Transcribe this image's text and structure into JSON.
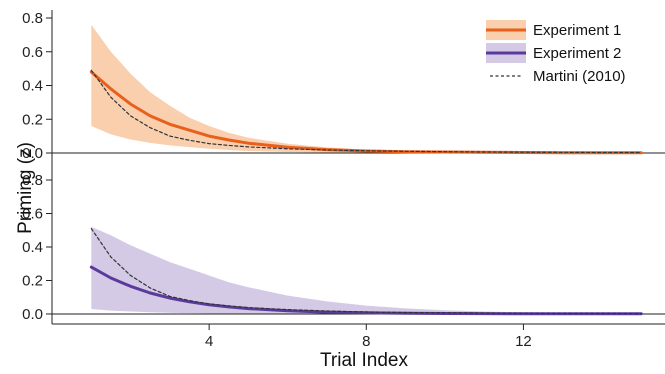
{
  "chart_data": {
    "type": "line",
    "title": "",
    "xlabel": "Trial Index",
    "ylabel": "Priming (z)",
    "xlim": [
      0,
      15.4
    ],
    "x_ticks": [
      "4",
      "8",
      "12"
    ],
    "x_tick_values": [
      4,
      8,
      12
    ],
    "grid": false,
    "legend": {
      "position": "top-right",
      "entries": [
        {
          "label": "Experiment 1",
          "kind": "line-with-band",
          "color": "#e8601c",
          "band_color": "#f9cfae"
        },
        {
          "label": "Experiment 2",
          "kind": "line-with-band",
          "color": "#5b3a9e",
          "band_color": "#d5cae6"
        },
        {
          "label": "Martini (2010)",
          "kind": "dashed-line",
          "color": "#333333"
        }
      ]
    },
    "panels": [
      {
        "name": "top",
        "ylim": [
          0,
          0.8
        ],
        "y_ticks": [
          "0.0",
          "0.2",
          "0.4",
          "0.6",
          "0.8"
        ],
        "y_tick_values": [
          0,
          0.2,
          0.4,
          0.6,
          0.8
        ],
        "series": [
          {
            "name": "Experiment 1",
            "x": [
              1,
              1.5,
              2,
              2.5,
              3,
              3.5,
              4,
              4.5,
              5,
              6,
              7,
              8,
              9,
              10,
              11,
              12,
              13,
              14,
              15
            ],
            "y": [
              0.48,
              0.38,
              0.29,
              0.22,
              0.17,
              0.135,
              0.1,
              0.077,
              0.058,
              0.034,
              0.02,
              0.012,
              0.008,
              0.006,
              0.004,
              0.003,
              0.002,
              0.002,
              0.002
            ],
            "y_upper": [
              0.76,
              0.6,
              0.47,
              0.36,
              0.28,
              0.21,
              0.16,
              0.12,
              0.09,
              0.055,
              0.033,
              0.02,
              0.012,
              0.008,
              0.006,
              0.005,
              0.004,
              0.003,
              0.003
            ],
            "y_lower": [
              0.16,
              0.11,
              0.08,
              0.06,
              0.045,
              0.035,
              0.025,
              0.018,
              0.012,
              0.006,
              0.003,
              0.001,
              0,
              0,
              0,
              0,
              0,
              0,
              0
            ]
          },
          {
            "name": "Martini (2010)",
            "x": [
              1,
              1.5,
              2,
              2.5,
              3,
              3.5,
              4,
              4.5,
              5,
              6,
              7,
              8,
              9,
              10,
              11,
              12,
              13,
              14,
              15
            ],
            "y": [
              0.49,
              0.33,
              0.22,
              0.15,
              0.1,
              0.075,
              0.056,
              0.045,
              0.036,
              0.025,
              0.018,
              0.013,
              0.01,
              0.008,
              0.006,
              0.005,
              0.004,
              0.003,
              0.003
            ]
          }
        ]
      },
      {
        "name": "bottom",
        "ylim": [
          -0.03,
          0.8
        ],
        "y_ticks": [
          "0.0",
          "0.2",
          "0.4",
          "0.6",
          "0.8"
        ],
        "y_tick_values": [
          0,
          0.2,
          0.4,
          0.6,
          0.8
        ],
        "series": [
          {
            "name": "Experiment 2",
            "x": [
              1,
              1.5,
              2,
              2.5,
              3,
              3.5,
              4,
              4.5,
              5,
              6,
              7,
              8,
              9,
              10,
              11,
              12,
              13,
              14,
              15
            ],
            "y": [
              0.28,
              0.215,
              0.165,
              0.125,
              0.095,
              0.073,
              0.055,
              0.042,
              0.032,
              0.019,
              0.011,
              0.007,
              0.004,
              0.003,
              0.002,
              0.001,
              0.001,
              0.001,
              0.001
            ],
            "y_upper": [
              0.52,
              0.47,
              0.41,
              0.36,
              0.31,
              0.27,
              0.23,
              0.19,
              0.16,
              0.11,
              0.075,
              0.05,
              0.033,
              0.022,
              0.015,
              0.01,
              0.007,
              0.005,
              0.004
            ],
            "y_lower": [
              0.03,
              0.02,
              0.015,
              0.01,
              0.007,
              0.005,
              0.003,
              0.002,
              0.001,
              0,
              0,
              0,
              0,
              0,
              0,
              0,
              0,
              0,
              0
            ]
          },
          {
            "name": "Martini (2010)",
            "x": [
              1,
              1.5,
              2,
              2.5,
              3,
              3.5,
              4,
              4.5,
              5,
              6,
              7,
              8,
              9,
              10,
              11,
              12,
              13,
              14,
              15
            ],
            "y": [
              0.51,
              0.34,
              0.23,
              0.155,
              0.105,
              0.08,
              0.06,
              0.048,
              0.038,
              0.026,
              0.018,
              0.012,
              0.009,
              0.007,
              0.005,
              0.004,
              0.003,
              0.003,
              0.002
            ]
          }
        ]
      }
    ]
  }
}
